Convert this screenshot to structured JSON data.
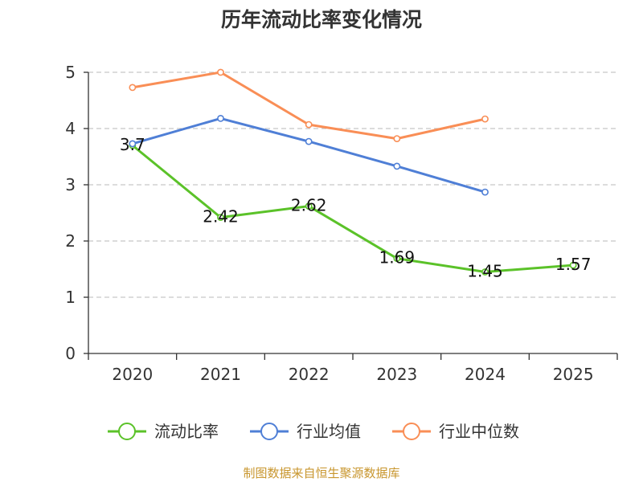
{
  "chart_data": {
    "type": "line",
    "title": "历年流动比率变化情况",
    "categories": [
      "2020",
      "2021",
      "2022",
      "2023",
      "2024",
      "2025"
    ],
    "ylim": [
      0,
      5
    ],
    "yticks": [
      0,
      1,
      2,
      3,
      4,
      5
    ],
    "grid": true,
    "legend_position": "bottom",
    "series": [
      {
        "name": "流动比率",
        "color": "#5bc229",
        "values": [
          3.7,
          2.42,
          2.62,
          1.69,
          1.45,
          1.57
        ],
        "labels": [
          "3.7",
          "2.42",
          "2.62",
          "1.69",
          "1.45",
          "1.57"
        ],
        "show_labels": true
      },
      {
        "name": "行业均值",
        "color": "#4f7fd6",
        "values": [
          3.73,
          4.18,
          3.77,
          3.33,
          2.87,
          null
        ],
        "show_labels": false
      },
      {
        "name": "行业中位数",
        "color": "#f98e56",
        "values": [
          4.73,
          5.0,
          4.07,
          3.82,
          4.17,
          null
        ],
        "show_labels": false
      }
    ],
    "source": "制图数据来自恒生聚源数据库"
  }
}
